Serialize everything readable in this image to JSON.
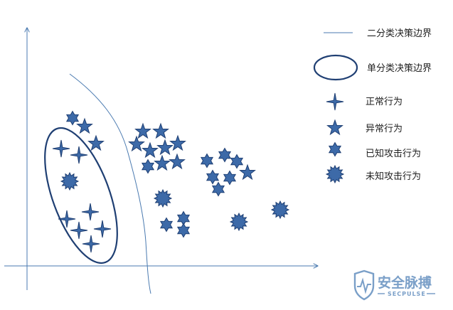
{
  "legend": {
    "binary_boundary": "二分类决策边界",
    "single_boundary": "单分类决策边界",
    "normal": "正常行为",
    "abnormal": "异常行为",
    "known_attack": "已知攻击行为",
    "unknown_attack": "未知攻击行为"
  },
  "watermark": {
    "title": "安全脉搏",
    "subtitle": "SECPULSE"
  },
  "colors": {
    "axis": "#4a7ab0",
    "marker_fill": "#3d6aa8",
    "marker_stroke": "#1f3f73",
    "ellipse": "#1f3f73",
    "watermark": "#7a9fc8"
  }
}
